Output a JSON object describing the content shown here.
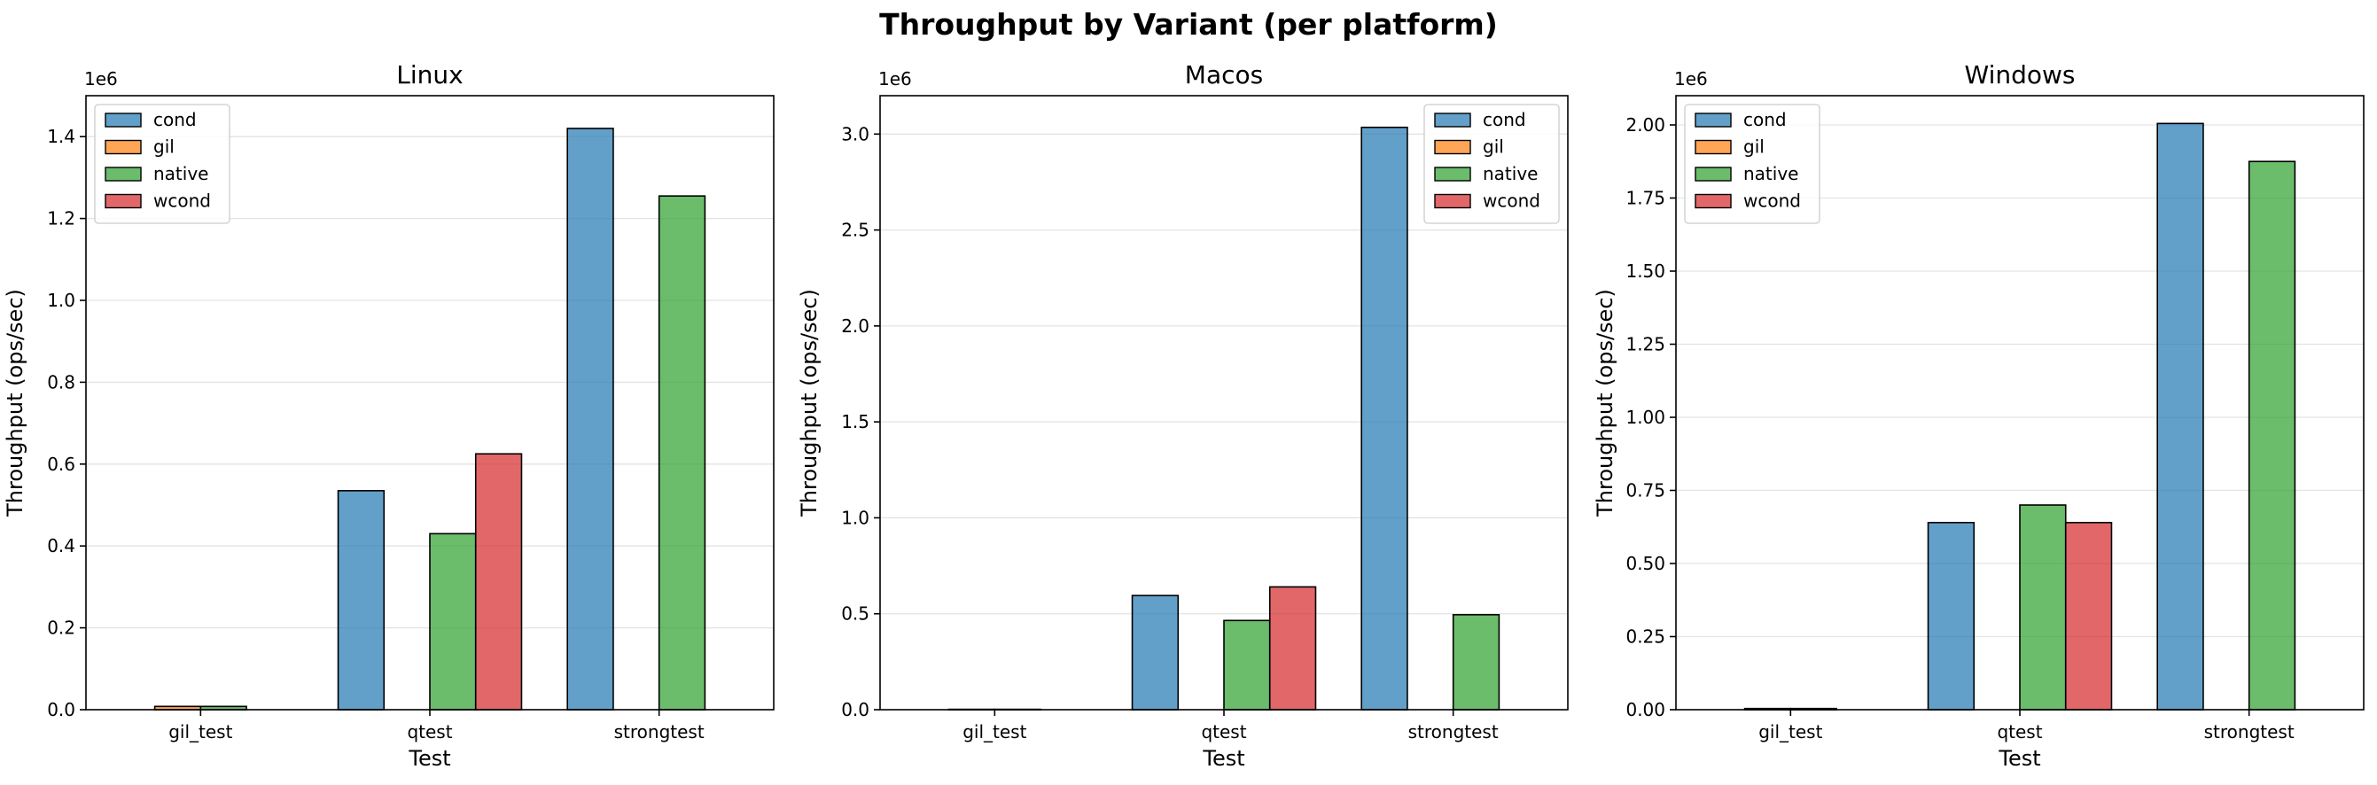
{
  "figure": {
    "title": "Throughput by Variant (per platform)"
  },
  "colors": {
    "cond": "#1f77b4",
    "gil": "#ff7f0e",
    "native": "#2ca02c",
    "wcond": "#d62728"
  },
  "chart_data": [
    {
      "type": "bar",
      "title": "Linux",
      "xlabel": "Test",
      "ylabel": "Throughput (ops/sec)",
      "y_multiplier_label": "1e6",
      "categories": [
        "gil_test",
        "qtest",
        "strongtest"
      ],
      "ylim": [
        0,
        1.5
      ],
      "yticks": [
        0.0,
        0.2,
        0.4,
        0.6,
        0.8,
        1.0,
        1.2,
        1.4
      ],
      "ytick_labels": [
        "0.0",
        "0.2",
        "0.4",
        "0.6",
        "0.8",
        "1.0",
        "1.2",
        "1.4"
      ],
      "legend_position": "top-left",
      "grid": "y",
      "series": [
        {
          "name": "cond",
          "values": [
            0,
            0.535,
            1.42
          ]
        },
        {
          "name": "gil",
          "values": [
            0.008,
            0,
            0
          ]
        },
        {
          "name": "native",
          "values": [
            0.008,
            0.43,
            1.255
          ]
        },
        {
          "name": "wcond",
          "values": [
            0,
            0.625,
            0
          ]
        }
      ]
    },
    {
      "type": "bar",
      "title": "Macos",
      "xlabel": "Test",
      "ylabel": "Throughput (ops/sec)",
      "y_multiplier_label": "1e6",
      "categories": [
        "gil_test",
        "qtest",
        "strongtest"
      ],
      "ylim": [
        0,
        3.2
      ],
      "yticks": [
        0.0,
        0.5,
        1.0,
        1.5,
        2.0,
        2.5,
        3.0
      ],
      "ytick_labels": [
        "0.0",
        "0.5",
        "1.0",
        "1.5",
        "2.0",
        "2.5",
        "3.0"
      ],
      "legend_position": "top-right",
      "grid": "y",
      "series": [
        {
          "name": "cond",
          "values": [
            0,
            0.595,
            3.035
          ]
        },
        {
          "name": "gil",
          "values": [
            0.002,
            0,
            0
          ]
        },
        {
          "name": "native",
          "values": [
            0.002,
            0.465,
            0.495
          ]
        },
        {
          "name": "wcond",
          "values": [
            0,
            0.64,
            0
          ]
        }
      ]
    },
    {
      "type": "bar",
      "title": "Windows",
      "xlabel": "Test",
      "ylabel": "Throughput (ops/sec)",
      "y_multiplier_label": "1e6",
      "categories": [
        "gil_test",
        "qtest",
        "strongtest"
      ],
      "ylim": [
        0,
        2.1
      ],
      "yticks": [
        0.0,
        0.25,
        0.5,
        0.75,
        1.0,
        1.25,
        1.5,
        1.75,
        2.0
      ],
      "ytick_labels": [
        "0.00",
        "0.25",
        "0.50",
        "0.75",
        "1.00",
        "1.25",
        "1.50",
        "1.75",
        "2.00"
      ],
      "legend_position": "top-left",
      "grid": "y",
      "series": [
        {
          "name": "cond",
          "values": [
            0,
            0.64,
            2.005
          ]
        },
        {
          "name": "gil",
          "values": [
            0.004,
            0,
            0
          ]
        },
        {
          "name": "native",
          "values": [
            0.004,
            0.7,
            1.875
          ]
        },
        {
          "name": "wcond",
          "values": [
            0,
            0.64,
            0
          ]
        }
      ]
    }
  ]
}
